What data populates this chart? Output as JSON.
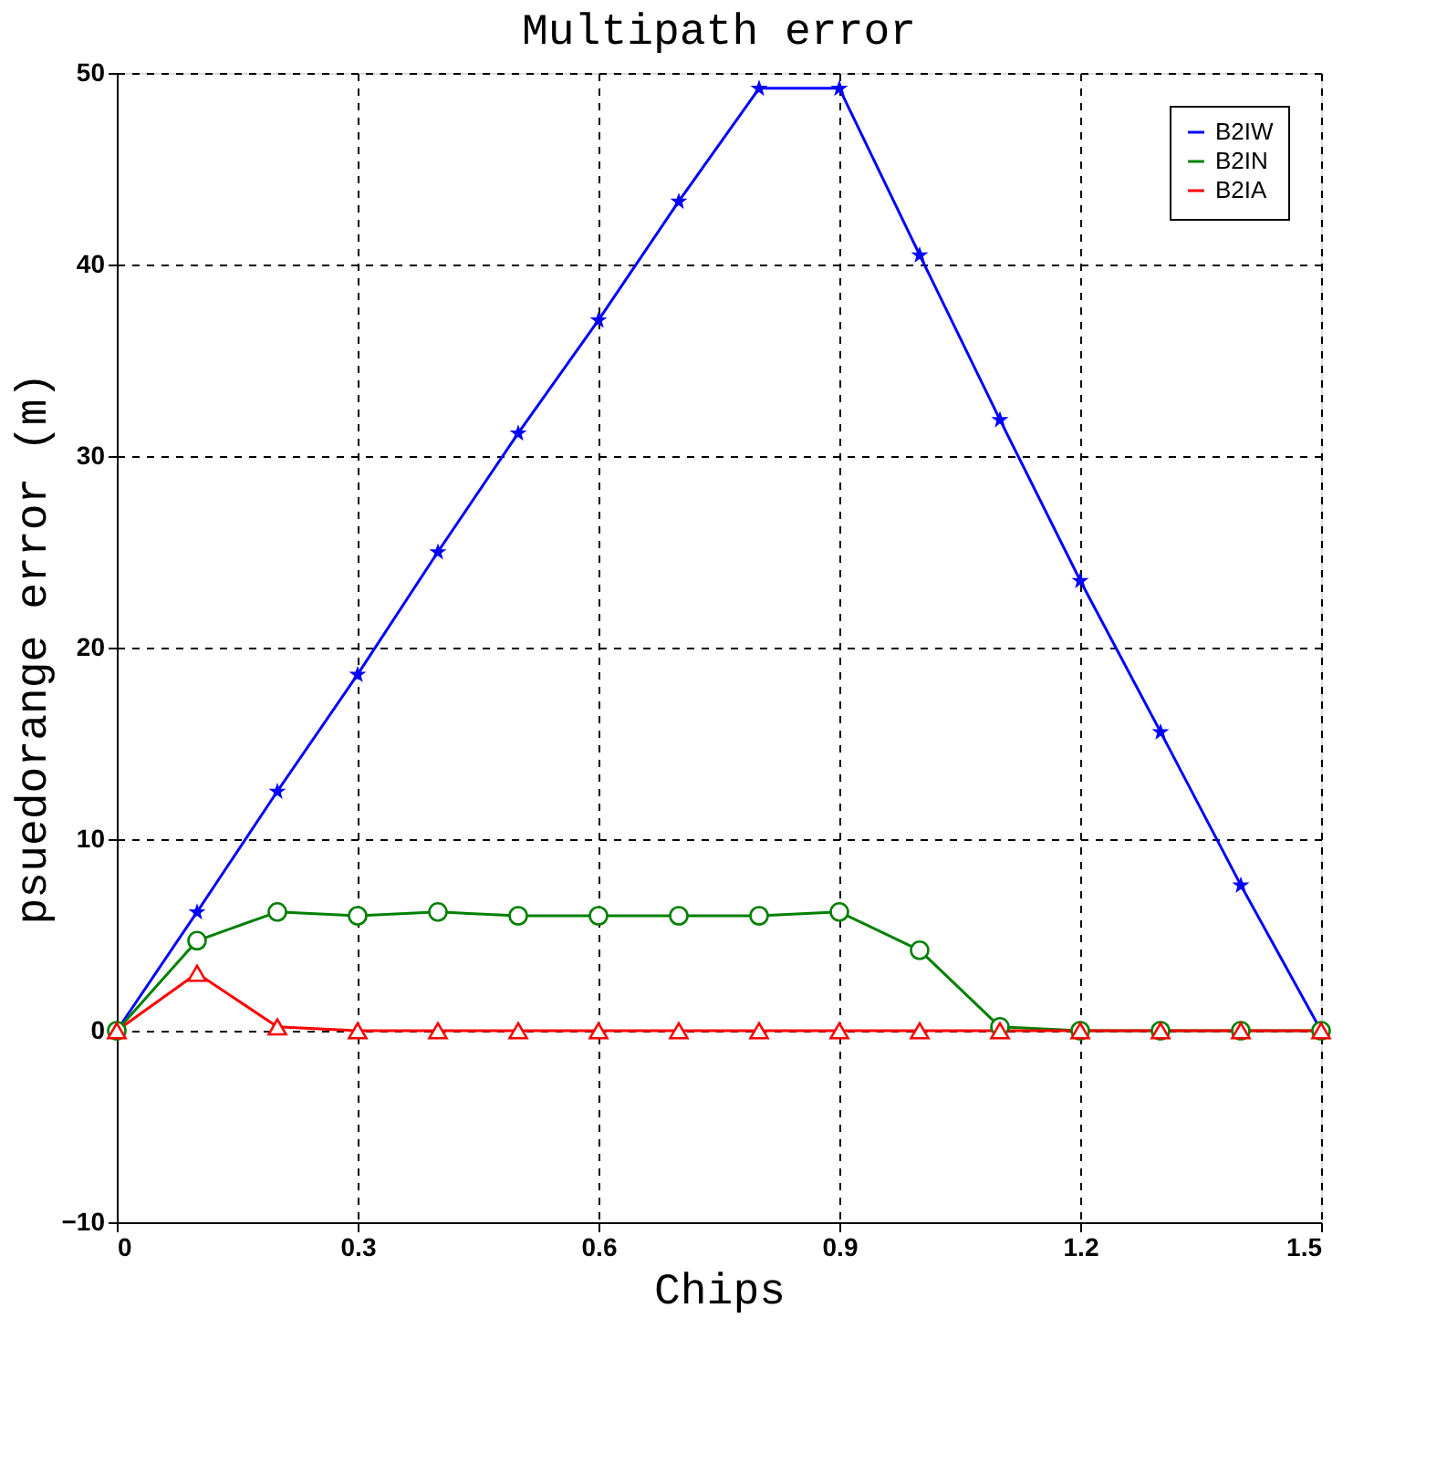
{
  "chart_data": {
    "type": "line",
    "title": "Multipath error",
    "xlabel": "Chips",
    "ylabel": "psuedorange error (m)",
    "x": [
      0,
      0.1,
      0.2,
      0.3,
      0.4,
      0.5,
      0.6,
      0.7,
      0.8,
      0.9,
      1.0,
      1.1,
      1.2,
      1.3,
      1.4,
      1.5
    ],
    "series": [
      {
        "name": "B2IW",
        "color": "#0000ff",
        "marker": "star",
        "values": [
          0,
          6.2,
          12.5,
          18.6,
          25,
          31.2,
          37.1,
          43.3,
          49.2,
          49.2,
          40.5,
          31.9,
          23.5,
          15.6,
          7.6,
          0
        ]
      },
      {
        "name": "B2IN",
        "color": "#008000",
        "marker": "circle",
        "values": [
          0,
          4.7,
          6.2,
          6,
          6.2,
          6,
          6,
          6,
          6,
          6.2,
          4.2,
          0.2,
          0,
          0,
          0,
          0
        ]
      },
      {
        "name": "B2IA",
        "color": "#ff0000",
        "marker": "triangle",
        "values": [
          0,
          3,
          0.2,
          0,
          0,
          0,
          0,
          0,
          0,
          0,
          0,
          0,
          0,
          0,
          0,
          0
        ]
      }
    ],
    "xlim": [
      0,
      1.5
    ],
    "xticks": [
      0,
      0.3,
      0.6,
      0.9,
      1.2,
      1.5
    ],
    "ylim": [
      -10,
      50
    ],
    "yticks": [
      -10,
      0,
      10,
      20,
      30,
      40,
      50
    ],
    "grid": true,
    "legend": "top right",
    "line_style": "solid"
  }
}
